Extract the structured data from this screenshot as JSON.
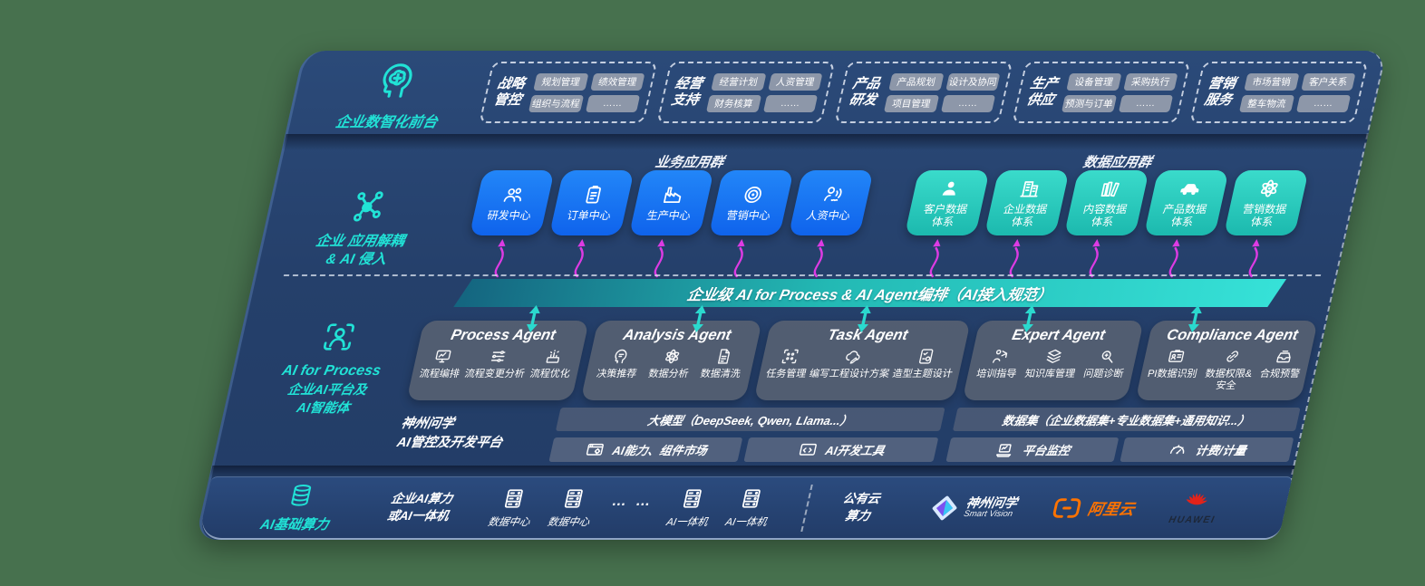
{
  "front_office": {
    "label": "企业数智化前台",
    "icon": "head-brain-icon",
    "groups": [
      {
        "title": "战略管控",
        "items": [
          "规划管理",
          "绩效管理",
          "组织与流程",
          "……"
        ]
      },
      {
        "title": "经营支持",
        "items": [
          "经营计划",
          "人资管理",
          "财务核算",
          "……"
        ]
      },
      {
        "title": "产品研发",
        "items": [
          "产品规划",
          "设计及协同",
          "项目管理",
          "……"
        ]
      },
      {
        "title": "生产供应",
        "items": [
          "设备管理",
          "采购执行",
          "预测与订单",
          "……"
        ]
      },
      {
        "title": "营销服务",
        "items": [
          "市场营销",
          "客户关系",
          "整车物流",
          "……"
        ]
      }
    ]
  },
  "app_layer": {
    "label_line1": "企业 应用解耦",
    "label_line2": "& AI 侵入",
    "icon": "molecule-icon",
    "business_group": {
      "title": "业务应用群",
      "items": [
        {
          "label": "研发中心",
          "icon": "team-icon"
        },
        {
          "label": "订单中心",
          "icon": "clipboard-icon"
        },
        {
          "label": "生产中心",
          "icon": "factory-icon"
        },
        {
          "label": "营销中心",
          "icon": "target-icon"
        },
        {
          "label": "人资中心",
          "icon": "person-waves-icon"
        }
      ]
    },
    "data_group": {
      "title": "数据应用群",
      "items": [
        {
          "label": "客户数据体系",
          "icon": "person-icon"
        },
        {
          "label": "企业数据体系",
          "icon": "building-icon"
        },
        {
          "label": "内容数据体系",
          "icon": "books-icon"
        },
        {
          "label": "产品数据体系",
          "icon": "car-icon"
        },
        {
          "label": "营销数据体系",
          "icon": "atom-icon"
        }
      ]
    }
  },
  "orchestration_bar": {
    "label": "企业级 AI for Process & AI Agent编排（AI接入规范）"
  },
  "agent_layer": {
    "label_en": "AI for Process",
    "label_zh_line1": "企业AI平台及",
    "label_zh_line2": "AI智能体",
    "icon": "focus-person-icon",
    "agents": [
      {
        "title": "Process Agent",
        "items": [
          {
            "label": "流程编排",
            "icon": "monitor-chart-icon"
          },
          {
            "label": "流程变更分析",
            "icon": "flow-icon"
          },
          {
            "label": "流程优化",
            "icon": "spark-box-icon"
          }
        ]
      },
      {
        "title": "Analysis Agent",
        "items": [
          {
            "label": "决策推荐",
            "icon": "head-chat-icon"
          },
          {
            "label": "数据分析",
            "icon": "atom-icon"
          },
          {
            "label": "数据清洗",
            "icon": "doc-data-icon"
          }
        ]
      },
      {
        "title": "Task Agent",
        "items": [
          {
            "label": "任务管理",
            "icon": "grid-dots-icon"
          },
          {
            "label": "编写工程设计方案",
            "icon": "cloud-pen-icon"
          },
          {
            "label": "造型主题设计",
            "icon": "design-card-icon"
          }
        ]
      },
      {
        "title": "Expert Agent",
        "items": [
          {
            "label": "培训指导",
            "icon": "mentor-icon"
          },
          {
            "label": "知识库管理",
            "icon": "layers-icon"
          },
          {
            "label": "问题诊断",
            "icon": "diagnose-icon"
          }
        ]
      },
      {
        "title": "Compliance Agent",
        "items": [
          {
            "label": "PI数据识别",
            "icon": "id-card-icon"
          },
          {
            "label": "数据权限&安全",
            "icon": "link-icon"
          },
          {
            "label": "合规预警",
            "icon": "inbox-alert-icon"
          }
        ]
      }
    ]
  },
  "platform": {
    "label_line1": "神州问学",
    "label_line2": "AI管控及开发平台",
    "model_bar": "大模型（DeepSeek, Qwen, Llama...）",
    "dataset_bar": "数据集（企业数据集+专业数据集+通用知识...）",
    "cells": [
      {
        "label": "AI能力、组件市场",
        "icon": "window-gear-icon"
      },
      {
        "label": "AI开发工具",
        "icon": "dev-tools-icon"
      },
      {
        "label": "平台监控",
        "icon": "laptop-chart-icon"
      },
      {
        "label": "计费/计量",
        "icon": "gauge-icon"
      }
    ]
  },
  "compute": {
    "label": "AI基础算力",
    "icon": "database-icon",
    "enterprise_line1": "企业AI算力",
    "enterprise_line2": "或AI一体机",
    "nodes": [
      {
        "label": "数据中心",
        "icon": "server-icon"
      },
      {
        "label": "数据中心",
        "icon": "server-icon"
      },
      {
        "label": "… …",
        "icon": "dots"
      },
      {
        "label": "AI一体机",
        "icon": "server-icon"
      },
      {
        "label": "AI一体机",
        "icon": "server-icon"
      }
    ],
    "public_cloud_line1": "公有云",
    "public_cloud_line2": "算力",
    "vendors": [
      {
        "name": "神州问学",
        "sub": "Smart Vision",
        "icon": "smartvision-logo-icon"
      },
      {
        "name": "阿里云",
        "icon": "aliyun-logo-icon"
      },
      {
        "name": "HUAWEI",
        "icon": "huawei-logo-icon"
      }
    ]
  },
  "colors": {
    "background_green": "#47714E",
    "panel_navy": "#25406B",
    "accent_teal": "#21E2D6",
    "box_blue": "#1677F3",
    "box_teal": "#2BD3C7",
    "bar_teal_start": "#14647F",
    "bar_teal_end": "#36E2D8",
    "arrow_magenta": "#DD3BE3",
    "aliyun_orange": "#FF7300",
    "huawei_red": "#E2231A"
  }
}
